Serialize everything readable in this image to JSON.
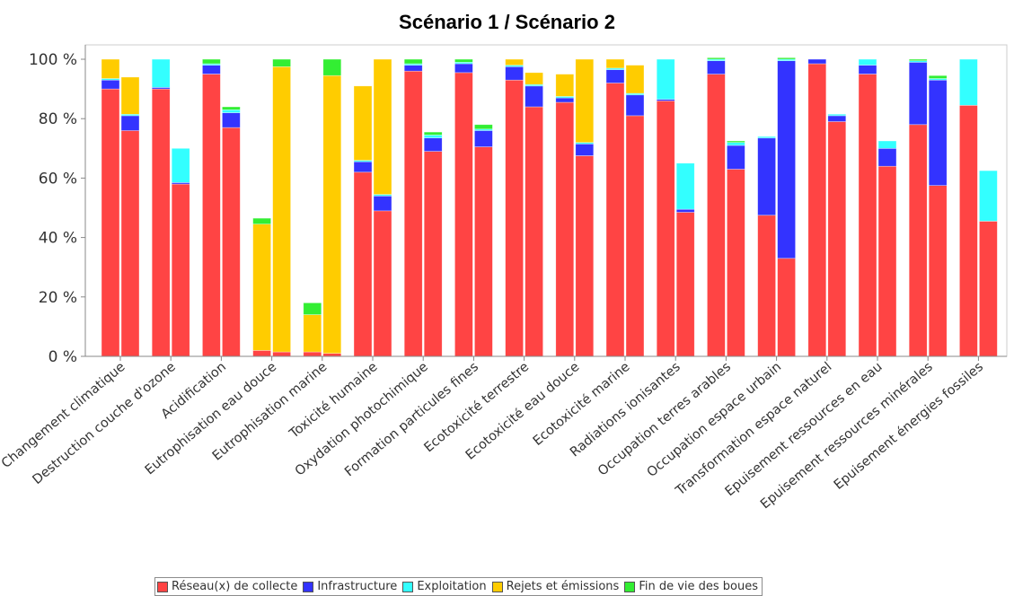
{
  "chart_data": {
    "type": "bar",
    "stacked": true,
    "title": "Scénario 1 / Scénario 2",
    "xlabel": "",
    "ylabel": "",
    "ylim": [
      0,
      100
    ],
    "yticks": [
      0,
      20,
      40,
      60,
      80,
      100
    ],
    "ytick_labels": [
      "0 %",
      "20 %",
      "40 %",
      "60 %",
      "80 %",
      "100 %"
    ],
    "grid": false,
    "legend_position": "bottom",
    "bars_per_category": [
      "Scénario 1",
      "Scénario 2"
    ],
    "categories": [
      "Changement climatique",
      "Destruction couche d'ozone",
      "Acidification",
      "Eutrophisation eau douce",
      "Eutrophisation marine",
      "Toxicité humaine",
      "Oxydation photochimique",
      "Formation particules fines",
      "Ecotoxicité terrestre",
      "Ecotoxicité eau douce",
      "Ecotoxicité marine",
      "Radiations ionisantes",
      "Occupation terres arables",
      "Occupation espace urbain",
      "Transformation espace naturel",
      "Epuisement ressources en eau",
      "Epuisement ressources minérales",
      "Epuisement énergies fossiles"
    ],
    "series": [
      {
        "name": "Réseau(x) de collecte",
        "color": "#ff4444",
        "scenario1": [
          90,
          90,
          95,
          2,
          1.5,
          62,
          96,
          95.5,
          93,
          85.5,
          92,
          86,
          95,
          47.5,
          98.5,
          95,
          78,
          84.5
        ],
        "scenario2": [
          76,
          58,
          77,
          1.5,
          1,
          49,
          69,
          70.5,
          84,
          67.5,
          81,
          48.5,
          63,
          33,
          79,
          64,
          57.5,
          45.5
        ]
      },
      {
        "name": "Infrastructure",
        "color": "#3333ff",
        "scenario1": [
          3,
          0.5,
          3,
          0,
          0,
          3.5,
          2,
          3,
          4.5,
          1.5,
          4.5,
          0.5,
          4.5,
          26,
          1.5,
          3,
          21,
          0
        ],
        "scenario2": [
          5,
          0.5,
          5,
          0,
          0,
          5,
          4.5,
          5.5,
          7,
          4,
          7,
          1,
          8,
          66.5,
          2,
          6,
          35.5,
          0
        ]
      },
      {
        "name": "Exploitation",
        "color": "#33ffff",
        "scenario1": [
          0.5,
          9.5,
          0.5,
          0,
          0,
          0.5,
          0.5,
          0.5,
          0.5,
          0.5,
          0.5,
          13.5,
          0.5,
          0.5,
          0,
          2,
          0.5,
          15.5
        ],
        "scenario2": [
          0.5,
          11.5,
          1,
          0,
          0,
          0.5,
          1,
          0.5,
          0.5,
          0.5,
          0.5,
          15.5,
          1,
          0.5,
          0.5,
          2.5,
          0.5,
          17
        ]
      },
      {
        "name": "Rejets et émissions",
        "color": "#ffcc00",
        "scenario1": [
          6.5,
          0,
          0,
          42.5,
          12.5,
          25,
          0,
          0,
          2,
          7.5,
          3,
          0,
          0,
          0,
          0,
          0,
          0,
          0
        ],
        "scenario2": [
          12.5,
          0,
          0,
          96,
          93.5,
          45.5,
          0,
          0,
          4,
          28,
          9.5,
          0,
          0,
          0,
          0,
          0,
          0,
          0
        ]
      },
      {
        "name": "Fin de vie des boues",
        "color": "#33ee33",
        "scenario1": [
          0,
          0,
          1.5,
          2,
          4,
          0,
          1.5,
          1,
          0,
          0,
          0,
          0,
          0.5,
          0,
          0,
          0,
          0.5,
          0
        ],
        "scenario2": [
          0,
          0,
          1,
          2.5,
          5.5,
          0,
          1,
          1.5,
          0,
          0,
          0,
          0,
          0.5,
          0.5,
          0,
          0,
          1,
          0
        ]
      }
    ]
  }
}
